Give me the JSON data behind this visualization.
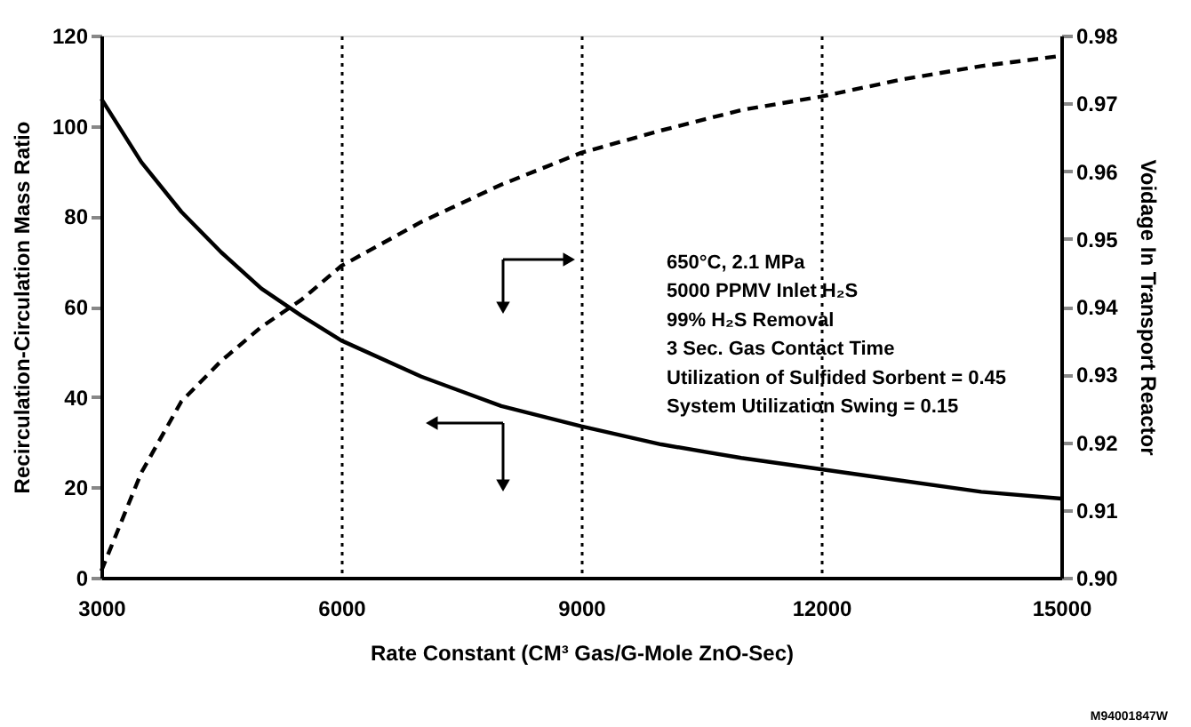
{
  "chart_data": {
    "type": "line",
    "xlabel": "Rate Constant (CM³ Gas/G-Mole ZnO-Sec)",
    "ylabel": "Recirculation-Circulation Mass Ratio",
    "y2label": "Voidage In Transport Reactor",
    "x": [
      3000,
      3500,
      4000,
      4500,
      5000,
      5500,
      6000,
      7000,
      8000,
      9000,
      10000,
      11000,
      12000,
      13000,
      14000,
      15000
    ],
    "series": [
      {
        "color": "#000000",
        "line_style": "solid",
        "values": [
          106,
          92,
          81,
          72,
          64,
          58,
          52.5,
          44.5,
          38,
          33.5,
          29.5,
          26.5,
          24,
          21.5,
          19,
          17.5
        ]
      },
      {
        "color": "#000000",
        "line_style": "dashed",
        "axis": "y2",
        "values": [
          0.901,
          0.9155,
          0.926,
          0.932,
          0.937,
          0.941,
          0.946,
          0.9525,
          0.958,
          0.9627,
          0.966,
          0.969,
          0.971,
          0.9735,
          0.9755,
          0.977
        ]
      }
    ],
    "xlim": [
      3000,
      15000
    ],
    "xticks": [
      3000,
      6000,
      9000,
      12000,
      15000
    ],
    "ylim": [
      0,
      120
    ],
    "yticks": [
      0,
      20,
      40,
      60,
      80,
      100,
      120
    ],
    "y2lim": [
      0.9,
      0.98
    ],
    "y2ticks": [
      {
        "value": 0.9,
        "label": "0.90"
      },
      0.91,
      0.92,
      0.93,
      0.94,
      0.95,
      0.96,
      0.97,
      {
        "value": 0.98,
        "label": "0.98"
      }
    ],
    "grid": "x",
    "annotations": [
      "650°C, 2.1 MPa",
      "5000 PPMV Inlet H₂S",
      "99% H₂S Removal",
      "3 Sec. Gas Contact Time",
      "Utilization of Sulfided Sorbent = 0.45",
      "System Utilization Swing = 0.15",
      "M94001847W"
    ]
  }
}
